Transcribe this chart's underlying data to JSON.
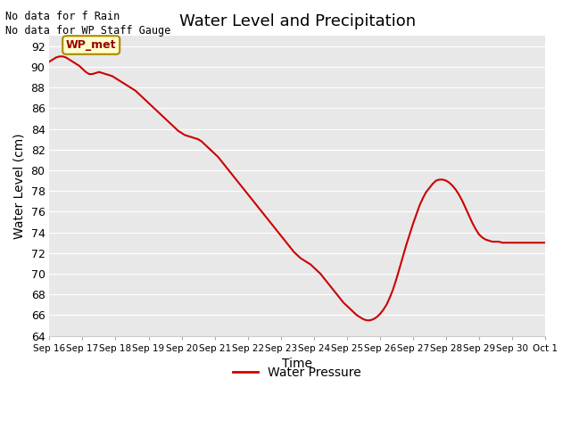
{
  "title": "Water Level and Precipitation",
  "xlabel": "Time",
  "ylabel": "Water Level (cm)",
  "ylim": [
    64,
    93
  ],
  "yticks": [
    64,
    66,
    68,
    70,
    72,
    74,
    76,
    78,
    80,
    82,
    84,
    86,
    88,
    90,
    92
  ],
  "background_color": "#e8e8e8",
  "line_color": "#cc0000",
  "legend_label": "Water Pressure",
  "no_data_text1": "No data for f Rain",
  "no_data_text2": "No data for WP Staff Gauge",
  "wp_met_label": "WP_met",
  "wp_met_bg": "#ffffcc",
  "wp_met_border": "#aa8800",
  "wp_met_text_color": "#990000",
  "tick_labels": [
    "Sep 16",
    "Sep 17",
    "Sep 18",
    "Sep 19",
    "Sep 20",
    "Sep 21",
    "Sep 22",
    "Sep 23",
    "Sep 24",
    "Sep 25",
    "Sep 26",
    "Sep 27",
    "Sep 28",
    "Sep 29",
    "Sep 30",
    "Oct 1"
  ],
  "data_x": [
    0.0,
    0.1,
    0.2,
    0.3,
    0.4,
    0.5,
    0.6,
    0.7,
    0.8,
    0.9,
    1.0,
    1.1,
    1.2,
    1.3,
    1.4,
    1.5,
    1.6,
    1.7,
    1.8,
    1.9,
    2.0,
    2.1,
    2.2,
    2.3,
    2.4,
    2.5,
    2.6,
    2.7,
    2.8,
    2.9,
    3.0,
    3.1,
    3.2,
    3.3,
    3.4,
    3.5,
    3.6,
    3.7,
    3.8,
    3.9,
    4.0,
    4.1,
    4.2,
    4.3,
    4.4,
    4.5,
    4.6,
    4.7,
    4.8,
    4.9,
    5.0,
    5.1,
    5.2,
    5.3,
    5.4,
    5.5,
    5.6,
    5.7,
    5.8,
    5.9,
    6.0,
    6.1,
    6.2,
    6.3,
    6.4,
    6.5,
    6.6,
    6.7,
    6.8,
    6.9,
    7.0,
    7.1,
    7.2,
    7.3,
    7.4,
    7.5,
    7.6,
    7.7,
    7.8,
    7.9,
    8.0,
    8.1,
    8.2,
    8.3,
    8.4,
    8.5,
    8.6,
    8.7,
    8.8,
    8.9,
    9.0,
    9.1,
    9.2,
    9.3,
    9.4,
    9.5,
    9.6,
    9.7,
    9.8,
    9.9,
    10.0,
    10.1,
    10.2,
    10.3,
    10.4,
    10.5,
    10.6,
    10.7,
    10.8,
    10.9,
    11.0,
    11.1,
    11.2,
    11.3,
    11.4,
    11.5,
    11.6,
    11.7,
    11.8,
    11.9,
    12.0,
    12.1,
    12.2,
    12.3,
    12.4,
    12.5,
    12.6,
    12.7,
    12.8,
    12.9,
    13.0,
    13.1,
    13.2,
    13.3,
    13.4,
    13.5,
    13.6,
    13.7,
    13.8,
    13.9,
    14.0,
    14.1,
    14.2,
    14.3,
    14.4,
    14.5,
    14.6,
    14.7,
    14.8,
    14.9,
    15.0
  ],
  "data_y": [
    90.5,
    90.7,
    90.9,
    91.0,
    91.0,
    90.9,
    90.7,
    90.5,
    90.3,
    90.1,
    89.8,
    89.5,
    89.3,
    89.3,
    89.4,
    89.5,
    89.4,
    89.3,
    89.2,
    89.1,
    88.9,
    88.7,
    88.5,
    88.3,
    88.1,
    87.9,
    87.7,
    87.4,
    87.1,
    86.8,
    86.5,
    86.2,
    85.9,
    85.6,
    85.3,
    85.0,
    84.7,
    84.4,
    84.1,
    83.8,
    83.6,
    83.4,
    83.3,
    83.2,
    83.1,
    83.0,
    82.8,
    82.5,
    82.2,
    81.9,
    81.6,
    81.3,
    80.9,
    80.5,
    80.1,
    79.7,
    79.3,
    78.9,
    78.5,
    78.1,
    77.7,
    77.3,
    76.9,
    76.5,
    76.1,
    75.7,
    75.3,
    74.9,
    74.5,
    74.1,
    73.7,
    73.3,
    72.9,
    72.5,
    72.1,
    71.8,
    71.5,
    71.3,
    71.1,
    70.9,
    70.6,
    70.3,
    70.0,
    69.6,
    69.2,
    68.8,
    68.4,
    68.0,
    67.6,
    67.2,
    66.9,
    66.6,
    66.3,
    66.0,
    65.8,
    65.6,
    65.5,
    65.5,
    65.6,
    65.8,
    66.1,
    66.5,
    67.0,
    67.7,
    68.5,
    69.5,
    70.6,
    71.7,
    72.8,
    73.8,
    74.8,
    75.7,
    76.6,
    77.3,
    77.9,
    78.3,
    78.7,
    79.0,
    79.1,
    79.1,
    79.0,
    78.8,
    78.5,
    78.1,
    77.6,
    77.0,
    76.3,
    75.6,
    74.9,
    74.3,
    73.8,
    73.5,
    73.3,
    73.2,
    73.1,
    73.1,
    73.1,
    73.0,
    73.0,
    73.0,
    73.0,
    73.0,
    73.0,
    73.0,
    73.0,
    73.0,
    73.0,
    73.0,
    73.0,
    73.0,
    73.0
  ]
}
